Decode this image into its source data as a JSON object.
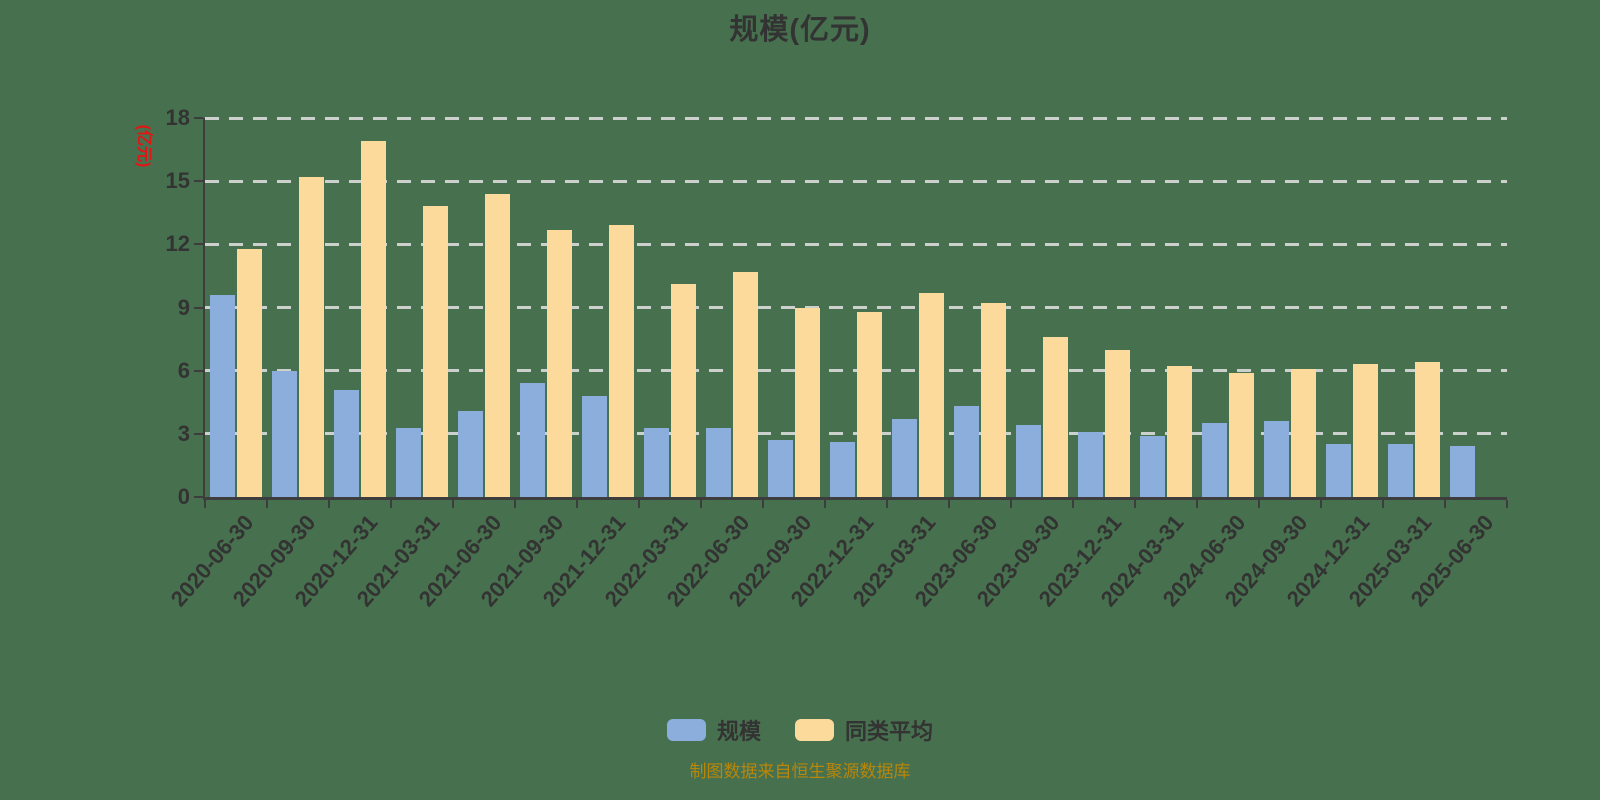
{
  "title": "规模(亿元)",
  "y_axis_name": "(亿元)",
  "caption": "制图数据来自恒生聚源数据库",
  "colors": {
    "background": "#47714e",
    "axis": "#3d3d3d",
    "gridline": "#cdd1cd",
    "text": "#333333",
    "y_axis_name_red": "#e51414",
    "caption_gold": "#b8860b",
    "series_scale_blue": "#8caedc",
    "series_peer_average_tan": "#fcda9c"
  },
  "legend": {
    "items": [
      {
        "label": "规模",
        "key": "scale",
        "color": "#8caedc"
      },
      {
        "label": "同类平均",
        "key": "peer-average",
        "color": "#fcda9c"
      }
    ]
  },
  "chart_data": {
    "type": "bar",
    "title": "规模(亿元)",
    "ylabel": "(亿元)",
    "xlabel": "",
    "ylim": [
      0,
      18
    ],
    "yticks": [
      0,
      3,
      6,
      9,
      12,
      15,
      18
    ],
    "grid": "horizontal-dashed",
    "legend_position": "bottom",
    "categories": [
      "2020-06-30",
      "2020-09-30",
      "2020-12-31",
      "2021-03-31",
      "2021-06-30",
      "2021-09-30",
      "2021-12-31",
      "2022-03-31",
      "2022-06-30",
      "2022-09-30",
      "2022-12-31",
      "2023-03-31",
      "2023-06-30",
      "2023-09-30",
      "2023-12-31",
      "2024-03-31",
      "2024-06-30",
      "2024-09-30",
      "2024-12-31",
      "2025-03-31",
      "2025-06-30"
    ],
    "series": [
      {
        "name": "规模",
        "key": "scale",
        "color": "#8caedc",
        "values": [
          9.6,
          6.0,
          5.1,
          3.3,
          4.1,
          5.4,
          4.8,
          3.3,
          3.3,
          2.7,
          2.6,
          3.7,
          4.3,
          3.4,
          3.1,
          2.9,
          3.5,
          3.6,
          2.5,
          2.5,
          2.4
        ]
      },
      {
        "name": "同类平均",
        "key": "peer-average",
        "color": "#fcda9c",
        "values": [
          11.8,
          15.2,
          16.9,
          13.8,
          14.4,
          12.7,
          12.9,
          10.1,
          10.7,
          9.0,
          8.8,
          9.7,
          9.2,
          7.6,
          7.0,
          6.2,
          5.9,
          6.1,
          6.3,
          6.4,
          null
        ]
      }
    ]
  }
}
